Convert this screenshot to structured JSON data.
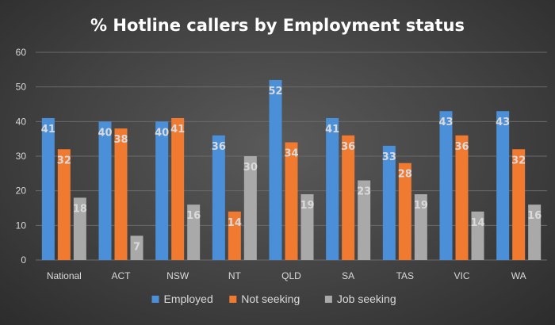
{
  "chart_data": {
    "type": "bar",
    "title": "% Hotline callers by Employment status",
    "categories": [
      "National",
      "ACT",
      "NSW",
      "NT",
      "QLD",
      "SA",
      "TAS",
      "VIC",
      "WA"
    ],
    "series": [
      {
        "name": "Employed",
        "color": "#4a8fd8",
        "values": [
          41,
          40,
          40,
          36,
          52,
          41,
          33,
          43,
          43
        ]
      },
      {
        "name": "Not seeking",
        "color": "#f07a30",
        "values": [
          32,
          38,
          41,
          14,
          34,
          36,
          28,
          36,
          32
        ]
      },
      {
        "name": "Job seeking",
        "color": "#a9a9a9",
        "values": [
          18,
          7,
          16,
          30,
          19,
          23,
          19,
          14,
          16
        ]
      }
    ],
    "ylim": [
      0,
      60
    ],
    "yticks": [
      "0",
      "10",
      "20",
      "30",
      "40",
      "50",
      "60"
    ],
    "grid": true,
    "legend_position": "bottom"
  }
}
